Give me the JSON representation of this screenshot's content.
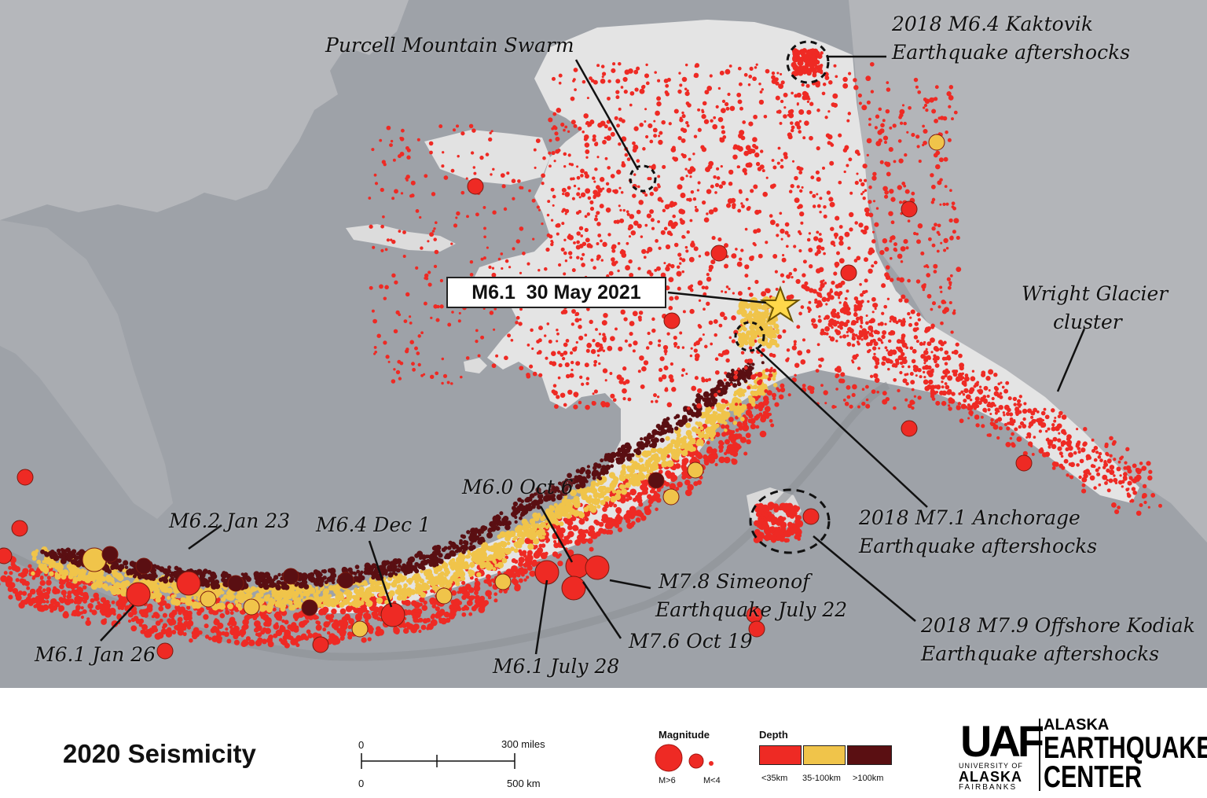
{
  "map": {
    "callouts": {
      "purcell": "Purcell Mountain Swarm",
      "kaktovik_1": "2018 M6.4 Kaktovik",
      "kaktovik_2": "Earthquake aftershocks",
      "wright_1": "Wright Glacier",
      "wright_2": "cluster",
      "anchorage_1": "2018 M7.1 Anchorage",
      "anchorage_2": "Earthquake aftershocks",
      "kodiak_1": "2018 M7.9 Offshore Kodiak",
      "kodiak_2": "Earthquake aftershocks",
      "simeonof_1": "M7.8 Simeonof",
      "simeonof_2": "Earthquake July 22",
      "oct19": "M7.6 Oct 19",
      "july28": "M6.1 July 28",
      "oct6": "M6.0 Oct 6",
      "dec1": "M6.4 Dec 1",
      "jan23": "M6.2 Jan 23",
      "jan26": "M6.1 Jan 26"
    },
    "featured_event": "M6.1  30 May 2021",
    "colors": {
      "water": "#9ea2a8",
      "land_alaska": "#e6e6e6",
      "land_other": "#b4b6ba",
      "shallow": "#ee2a24",
      "intermediate": "#f0c44a",
      "deep": "#5a0f12",
      "star": "#ffd84a"
    }
  },
  "footer": {
    "title": "2020 Seismicity",
    "scale": {
      "top_start": "0",
      "top_end": "300 miles",
      "bottom_start": "0",
      "bottom_end": "500 km"
    },
    "magnitude_legend": {
      "heading": "Magnitude",
      "large": "M>6",
      "small": "M<4"
    },
    "depth_legend": {
      "heading": "Depth",
      "classes": [
        "<35km",
        "35-100km",
        ">100km"
      ]
    },
    "logo": {
      "mark": "UAF",
      "university_line": "UNIVERSITY OF",
      "alaska": "ALASKA",
      "fairbanks": "FAIRBANKS",
      "center_1": "ALASKA",
      "center_2": "EARTHQUAKE",
      "center_3": "CENTER"
    }
  }
}
